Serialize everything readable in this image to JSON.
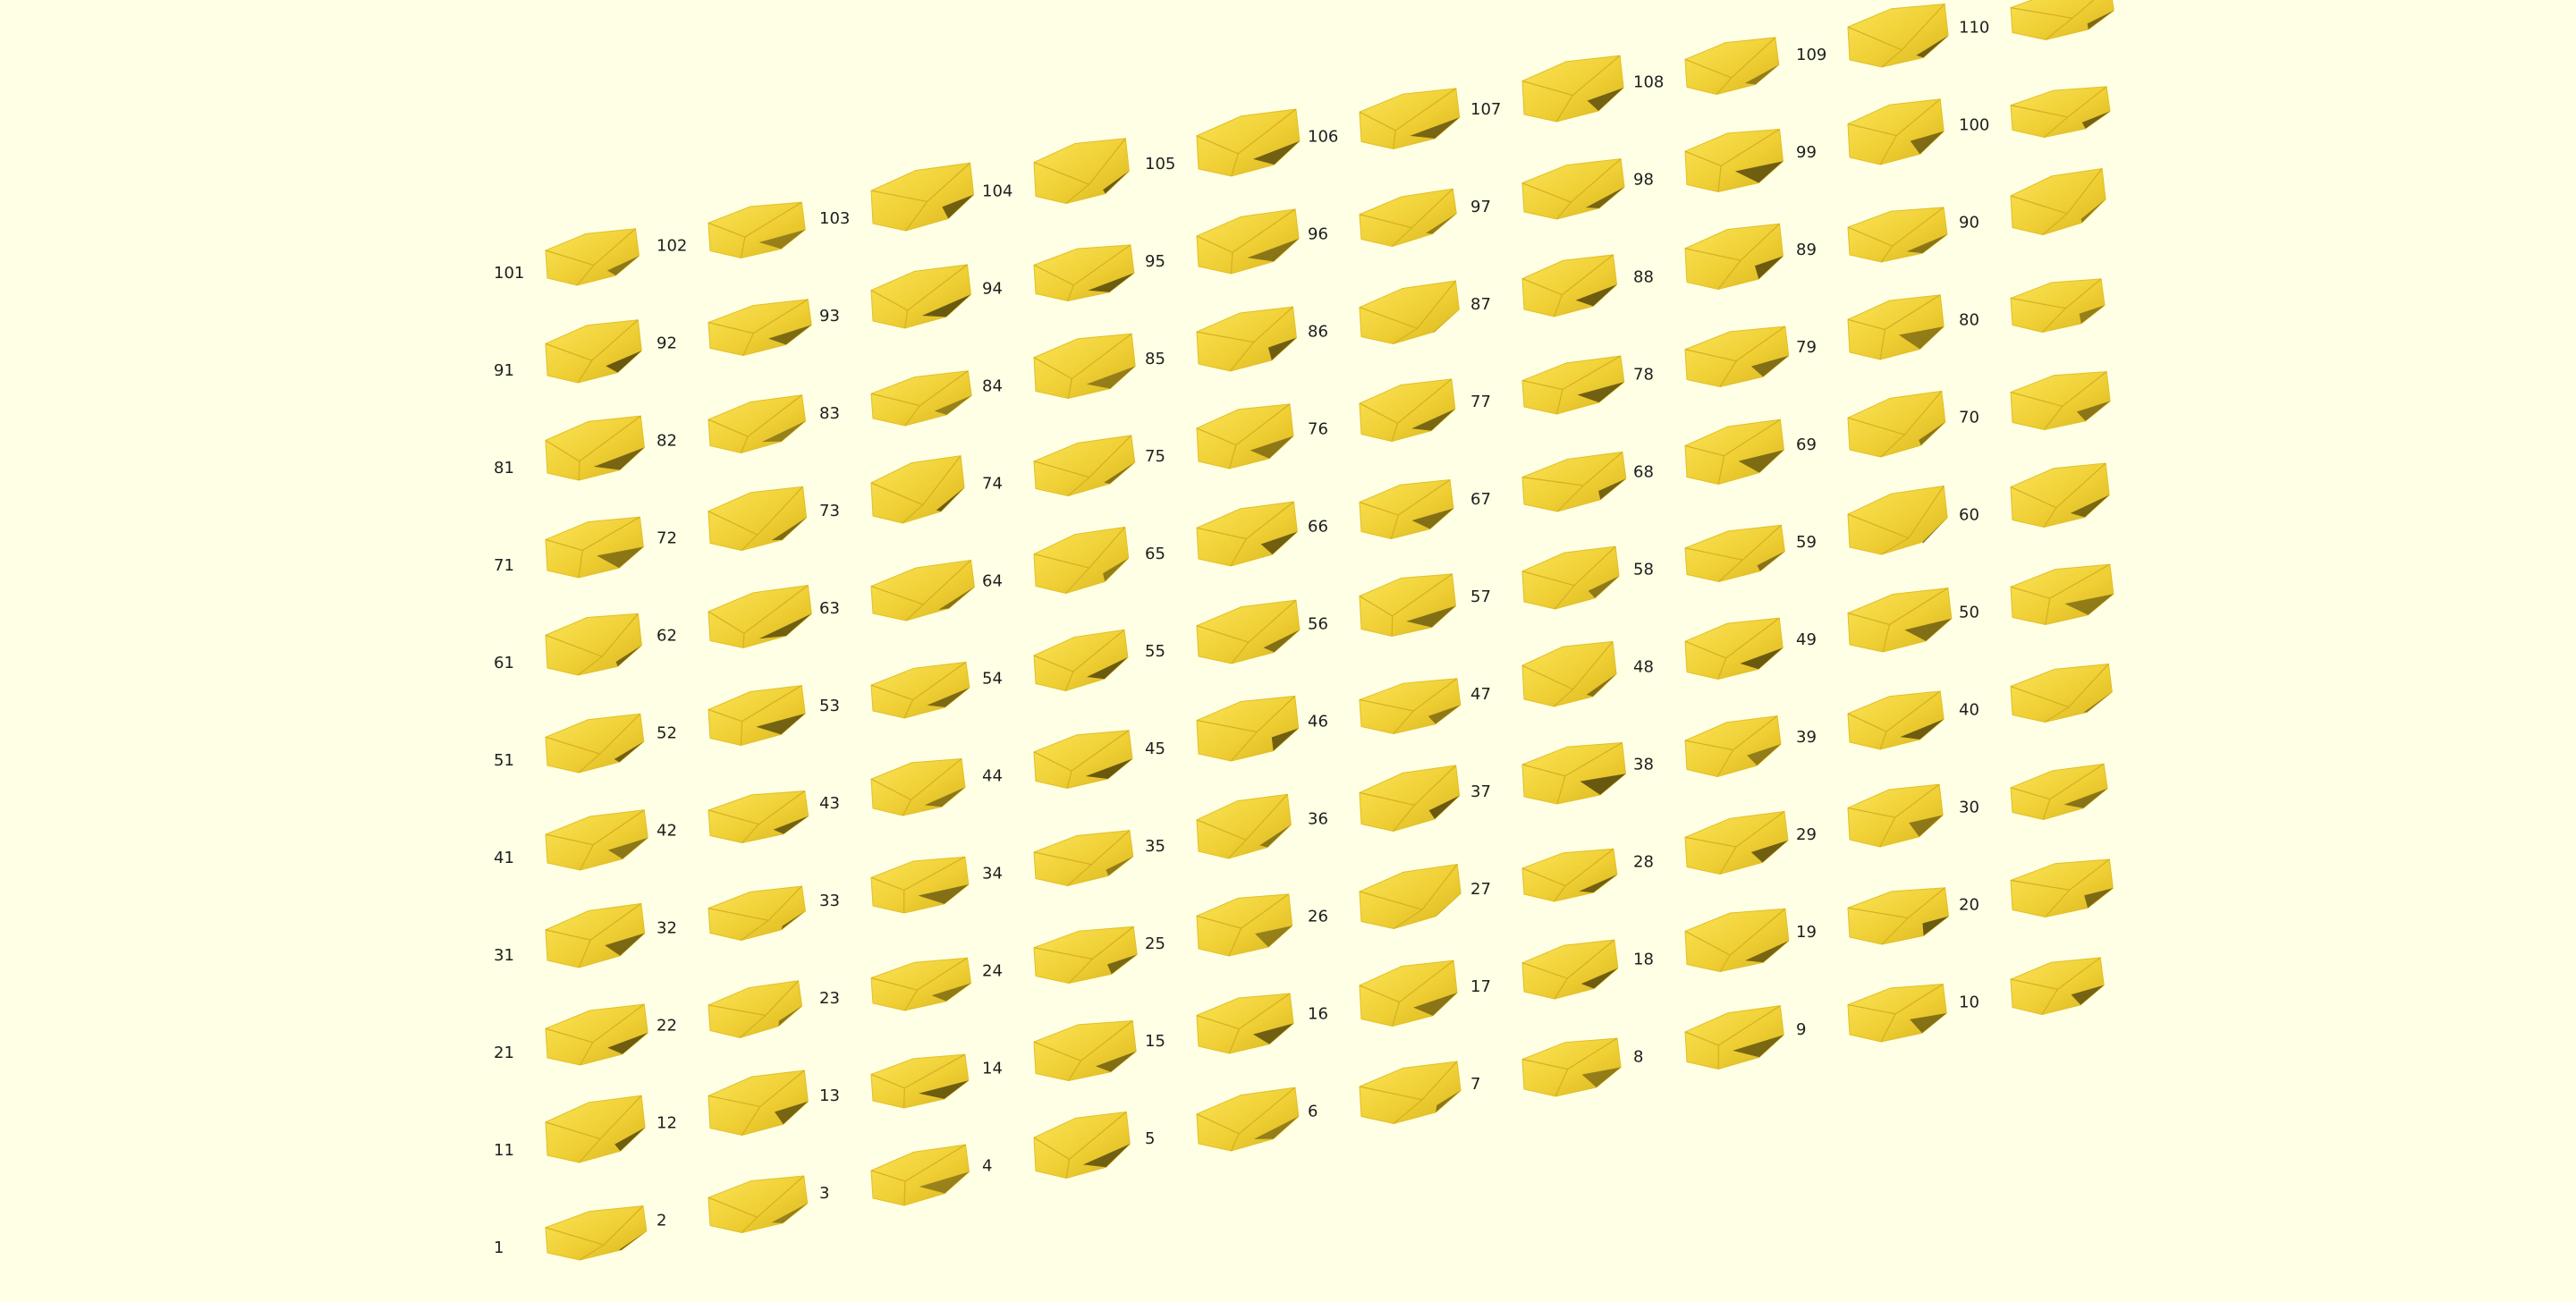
{
  "viewport": {
    "background": "#ffffe5",
    "part_color": "#f1d23a",
    "part_shadow_color": "#5a4c0c",
    "label_color": "#1e1e1e"
  },
  "parts": [
    "1",
    "2",
    "3",
    "4",
    "5",
    "6",
    "7",
    "8",
    "9",
    "10",
    "11",
    "12",
    "13",
    "14",
    "15",
    "16",
    "17",
    "18",
    "19",
    "20",
    "21",
    "22",
    "23",
    "24",
    "25",
    "26",
    "27",
    "28",
    "29",
    "30",
    "31",
    "32",
    "33",
    "34",
    "35",
    "36",
    "37",
    "38",
    "39",
    "40",
    "41",
    "42",
    "43",
    "44",
    "45",
    "46",
    "47",
    "48",
    "49",
    "50",
    "51",
    "52",
    "53",
    "54",
    "55",
    "56",
    "57",
    "58",
    "59",
    "60",
    "61",
    "62",
    "63",
    "64",
    "65",
    "66",
    "67",
    "68",
    "69",
    "70",
    "71",
    "72",
    "73",
    "74",
    "75",
    "76",
    "77",
    "78",
    "79",
    "80",
    "81",
    "82",
    "83",
    "84",
    "85",
    "86",
    "87",
    "88",
    "89",
    "90",
    "91",
    "92",
    "93",
    "94",
    "95",
    "96",
    "97",
    "98",
    "99",
    "100",
    "101",
    "102",
    "103",
    "104",
    "105",
    "106",
    "107",
    "108",
    "109",
    "110"
  ]
}
